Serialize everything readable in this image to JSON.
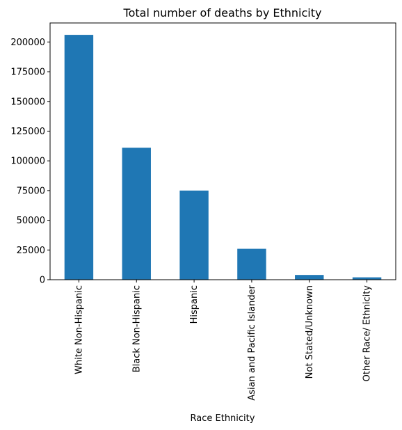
{
  "chart_data": {
    "type": "bar",
    "title": "Total number of deaths by Ethnicity",
    "xlabel": "Race Ethnicity",
    "ylabel": "",
    "categories": [
      "White Non-Hispanic",
      "Black Non-Hispanic",
      "Hispanic",
      "Asian and Pacific Islander",
      "Not Stated/Unknown",
      "Other Race/ Ethnicity"
    ],
    "values": [
      206000,
      111000,
      75000,
      26000,
      4000,
      2000
    ],
    "ylim": [
      0,
      216000
    ],
    "yticks": [
      0,
      25000,
      50000,
      75000,
      100000,
      125000,
      150000,
      175000,
      200000
    ],
    "ytick_labels": [
      "0",
      "25000",
      "50000",
      "75000",
      "100000",
      "125000",
      "150000",
      "175000",
      "200000"
    ],
    "grid": false,
    "legend": "none",
    "colors": {
      "bar": "#1f77b4",
      "axis": "#000000",
      "background": "#ffffff"
    }
  }
}
